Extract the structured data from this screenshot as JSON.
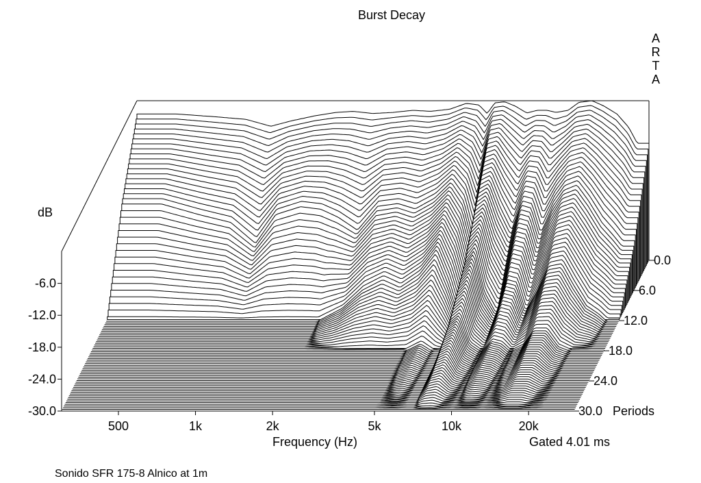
{
  "chart_data": {
    "type": "waterfall",
    "title": "Burst Decay",
    "brand": "ARTA",
    "xlabel": "Frequency (Hz)",
    "ylabel": "dB",
    "zlabel": "Periods",
    "x_ticks": [
      "500",
      "1k",
      "2k",
      "5k",
      "10k",
      "20k"
    ],
    "x_tick_values": [
      500,
      1000,
      2000,
      5000,
      10000,
      20000
    ],
    "xlim": [
      300,
      30000
    ],
    "y_ticks": [
      "-6.0",
      "-12.0",
      "-18.0",
      "-24.0",
      "-30.0"
    ],
    "y_tick_values": [
      -6,
      -12,
      -18,
      -24,
      -30
    ],
    "ylim": [
      -30,
      0
    ],
    "z_ticks": [
      "0.0",
      "6.0",
      "12.0",
      "18.0",
      "24.0",
      "30.0"
    ],
    "z_tick_values": [
      0,
      6,
      12,
      18,
      24,
      30
    ],
    "zlim": [
      0,
      30
    ],
    "gating_note": "Gated 4.01 ms",
    "footer_note": "Sonido SFR 175-8 Alnico at 1m",
    "series": [
      {
        "period": 0,
        "x": [
          430,
          600,
          800,
          1000,
          1200,
          1500,
          1800,
          2100,
          2500,
          3000,
          3600,
          4200,
          5000,
          5800,
          6500,
          7000,
          7500,
          8200,
          9000,
          10000,
          11000,
          12000,
          13000,
          14500,
          16000,
          18000,
          20000,
          22500,
          25000,
          27000
        ],
        "y": [
          -2.5,
          -3.0,
          -3.5,
          -4.8,
          -3.8,
          -2.8,
          -2.2,
          -2.0,
          -2.4,
          -2.2,
          -1.8,
          -2.0,
          -1.6,
          -0.5,
          -0.8,
          -2.4,
          -0.4,
          -0.2,
          -1.0,
          -2.3,
          -1.8,
          -1.8,
          -2.2,
          -1.8,
          -0.3,
          0.0,
          -1.0,
          -2.5,
          -5.0,
          -8.0
        ]
      },
      {
        "period": 6,
        "x": [
          430,
          600,
          800,
          1000,
          1200,
          1500,
          1800,
          2100,
          2500,
          3000,
          3600,
          4200,
          5000,
          5800,
          6500,
          7000,
          7500,
          8200,
          9000,
          10000,
          11000,
          12000,
          13000,
          14500,
          16000,
          18000,
          20000,
          22500,
          25000,
          27000
        ],
        "y": [
          -13.5,
          -15.5,
          -17.0,
          -21.0,
          -15.5,
          -14.0,
          -14.5,
          -16.0,
          -18.5,
          -14.0,
          -13.5,
          -14.5,
          -12.5,
          -9.5,
          -13.0,
          -19.0,
          -10.0,
          -9.0,
          -14.0,
          -18.5,
          -13.0,
          -13.5,
          -19.0,
          -14.0,
          -11.0,
          -10.0,
          -13.0,
          -17.0,
          -19.5,
          -21.5
        ]
      },
      {
        "period": 12,
        "x": [
          1500,
          2000,
          2500,
          3000,
          3600,
          4200,
          5000,
          5800,
          6500,
          7000,
          7500,
          8200,
          9000,
          10000,
          11000,
          12000,
          13000,
          14500,
          16000,
          18000,
          20000,
          22500,
          25000,
          27000
        ],
        "y": [
          -30.0,
          -30.0,
          -27.5,
          -24.0,
          -22.0,
          -23.5,
          -21.0,
          -17.0,
          -23.0,
          -28.0,
          -19.0,
          -16.5,
          -24.5,
          -28.5,
          -22.0,
          -22.5,
          -28.0,
          -24.0,
          -19.5,
          -19.0,
          -23.0,
          -27.0,
          -28.5,
          -30.0
        ]
      },
      {
        "period": 18,
        "x": [
          5000,
          5800,
          6500,
          7000,
          7500,
          8200,
          9000,
          10000,
          11000,
          12000,
          13000,
          14500,
          16000,
          18000,
          20000,
          22500,
          25000,
          27000
        ],
        "y": [
          -30.0,
          -28.5,
          -30.0,
          -30.0,
          -24.5,
          -23.0,
          -28.5,
          -30.0,
          -28.0,
          -28.5,
          -30.0,
          -29.0,
          -26.0,
          -26.0,
          -29.0,
          -30.0,
          -30.0,
          -30.0
        ]
      },
      {
        "period": 30,
        "x": [
          300,
          30000
        ],
        "y": [
          -30.0,
          -30.0
        ]
      }
    ]
  }
}
